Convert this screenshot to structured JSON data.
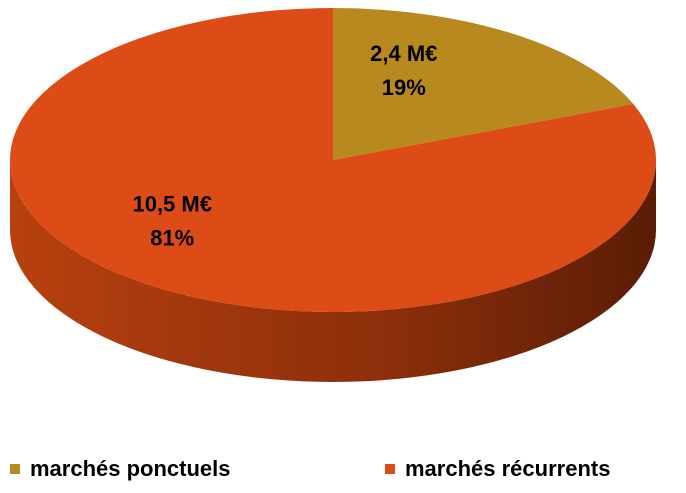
{
  "chart_data": {
    "type": "pie3d",
    "categories": [
      "marchés ponctuels",
      "marchés récurrents"
    ],
    "values": [
      19,
      81
    ],
    "value_labels": [
      "19%",
      "81%"
    ],
    "amounts": [
      2.4,
      10.5
    ],
    "amount_labels": [
      "2,4 M€",
      "10,5 M€"
    ],
    "colors": [
      "#b8891e",
      "#dd4c16"
    ],
    "legend": "bottom"
  }
}
